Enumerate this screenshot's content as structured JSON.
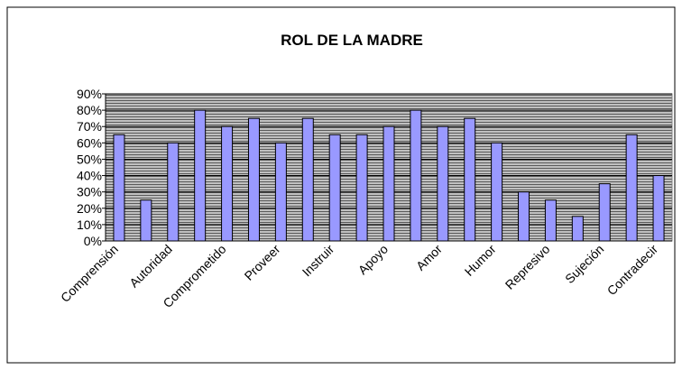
{
  "chart_data": {
    "type": "bar",
    "title": "ROL DE LA MADRE",
    "categories": [
      "Comprensión",
      null,
      "Autoridad",
      null,
      "Comprometido",
      null,
      "Proveer",
      null,
      "Instruir",
      null,
      "Apoyo",
      null,
      "Amor",
      null,
      "Humor",
      null,
      "Represivo",
      null,
      "Sujeción",
      null,
      "Contradecir"
    ],
    "values": [
      65,
      25,
      60,
      80,
      70,
      75,
      60,
      75,
      65,
      65,
      70,
      80,
      70,
      75,
      60,
      30,
      25,
      15,
      35,
      65,
      40
    ],
    "color": "#9999ff",
    "ylim": [
      0,
      90
    ],
    "yticks": [
      {
        "value": 0,
        "label": "0%"
      },
      {
        "value": 10,
        "label": "10%"
      },
      {
        "value": 20,
        "label": "20%"
      },
      {
        "value": 30,
        "label": "30%"
      },
      {
        "value": 40,
        "label": "40%"
      },
      {
        "value": 50,
        "label": "50%"
      },
      {
        "value": 60,
        "label": "60%"
      },
      {
        "value": 70,
        "label": "70%"
      },
      {
        "value": 80,
        "label": "80%"
      },
      {
        "value": 90,
        "label": "90%"
      }
    ],
    "grid": true
  }
}
